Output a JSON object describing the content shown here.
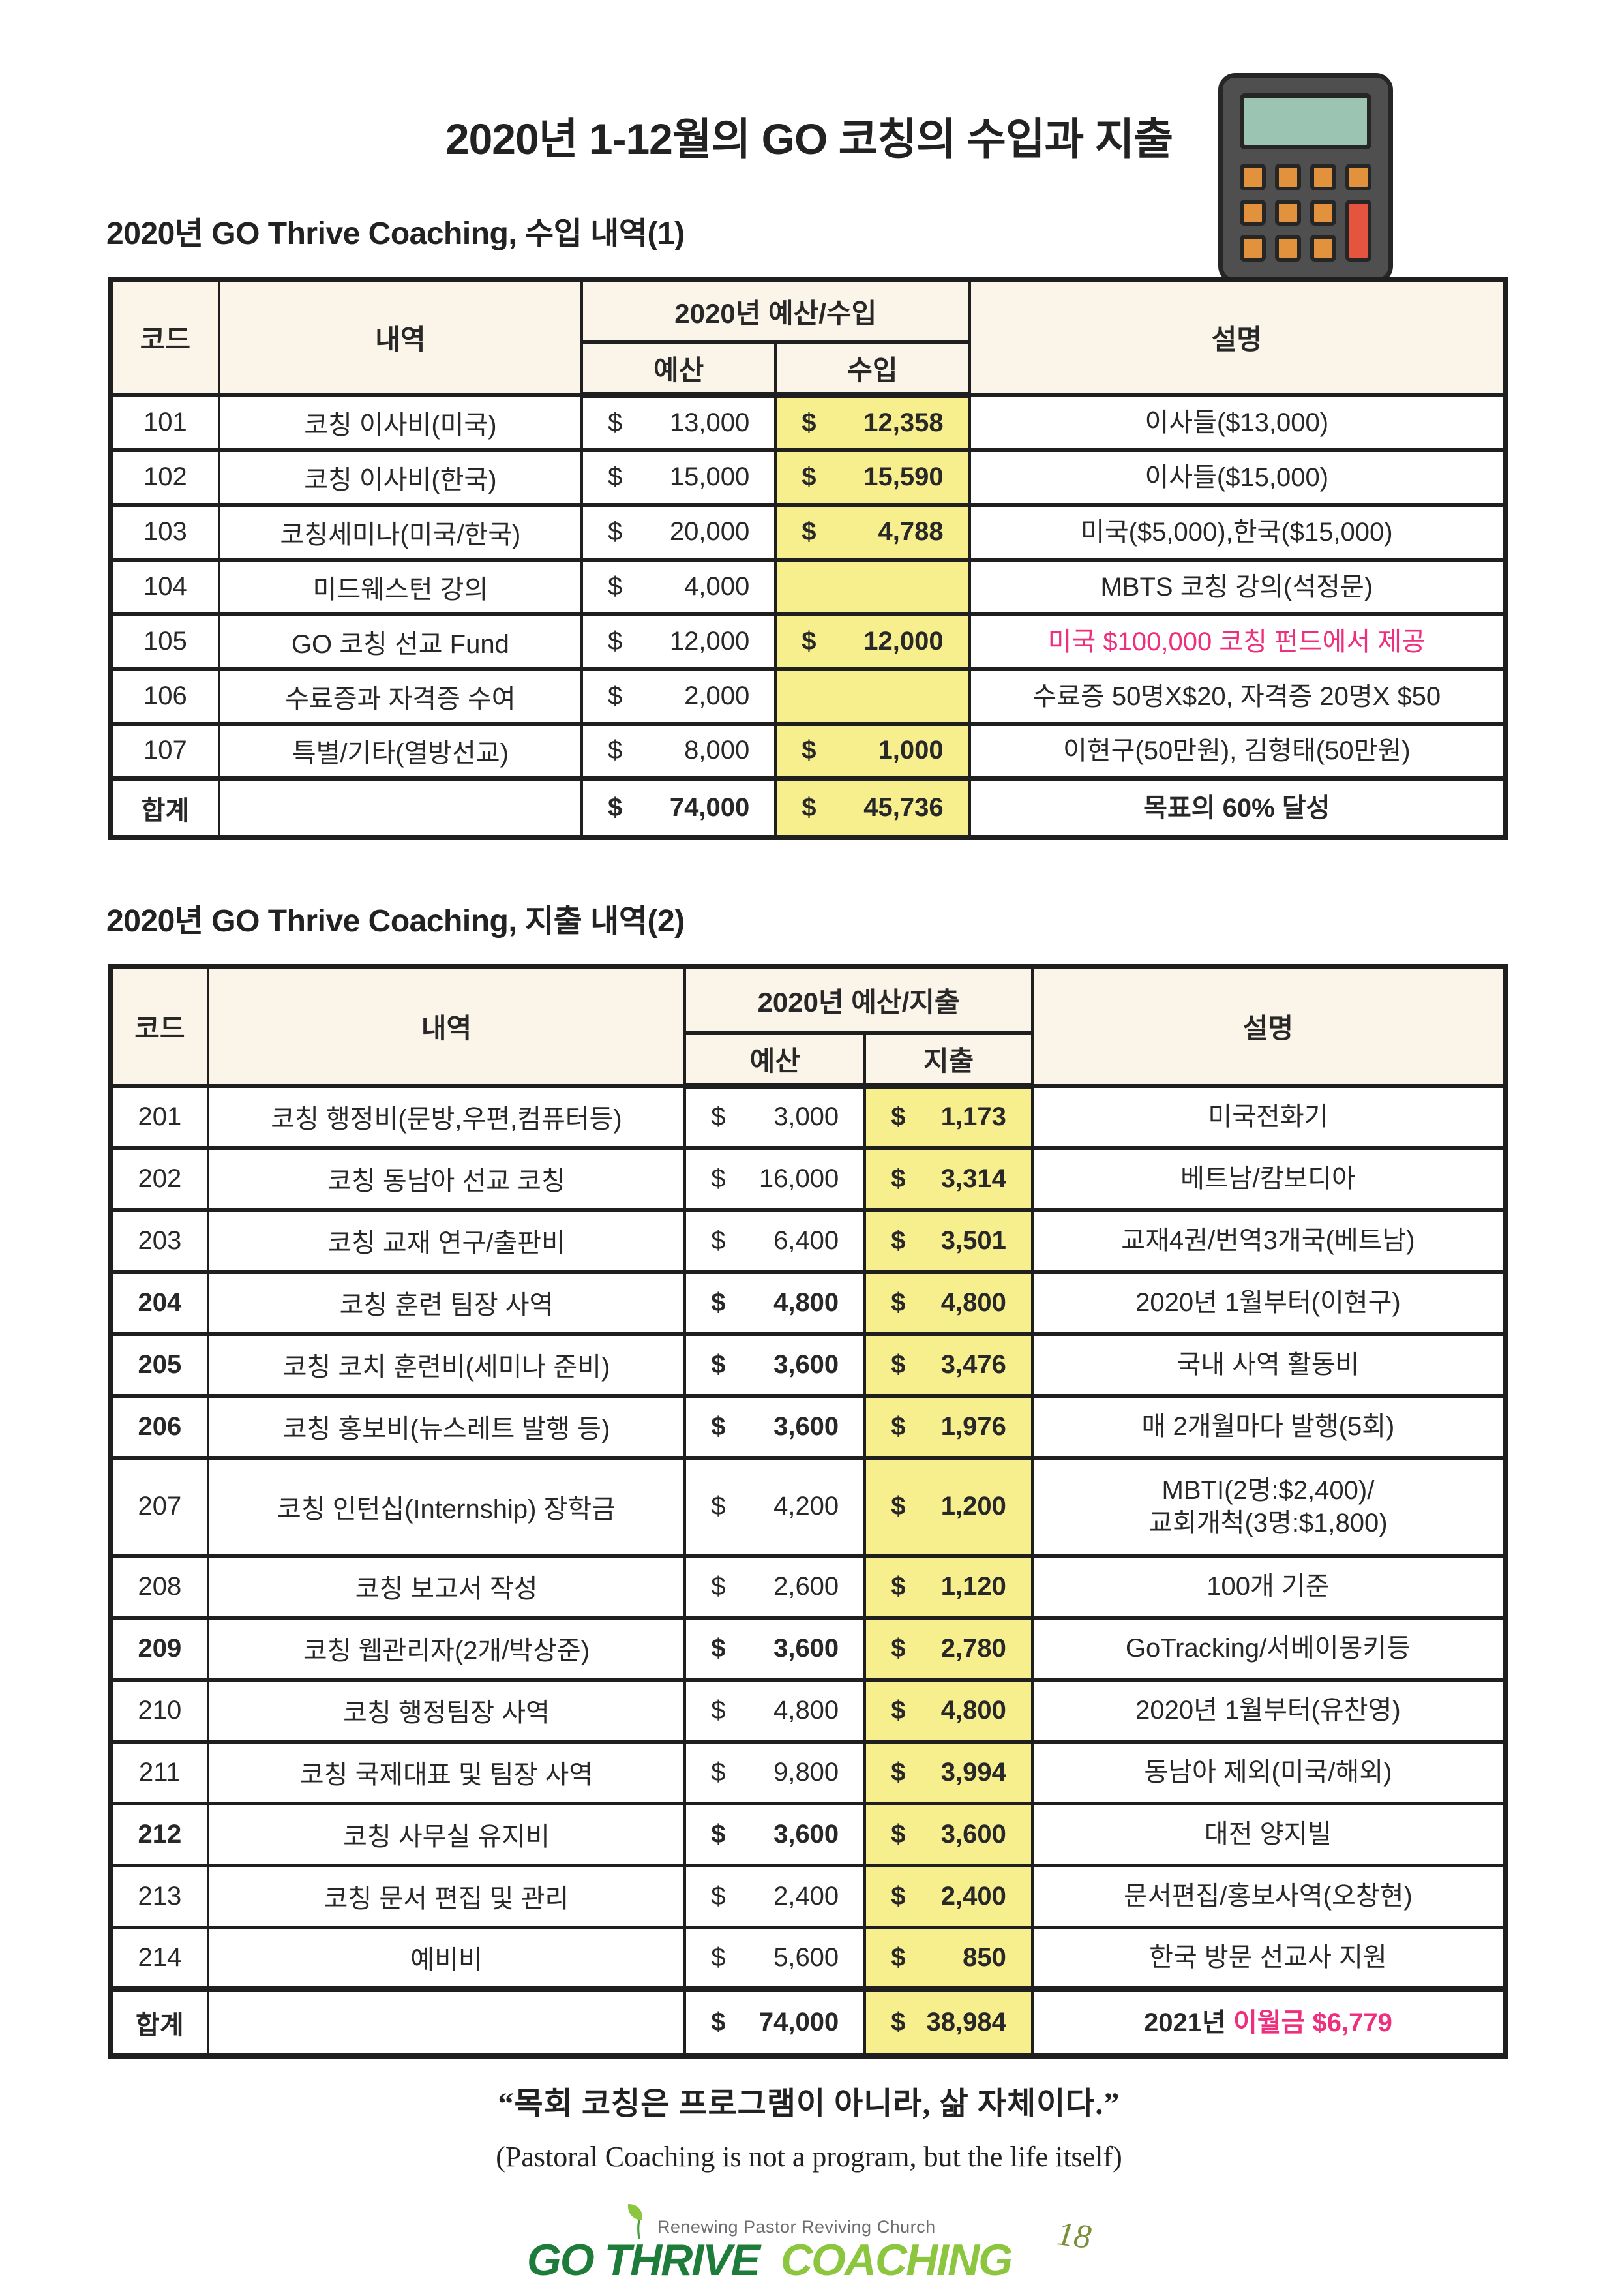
{
  "page": {
    "title": "2020년 1-12월의 GO 코칭의 수입과 지출",
    "page_number": "18",
    "title_icon": "calculator-icon"
  },
  "colors": {
    "header_cream": "#fbf4e9",
    "highlight_yellow": "#f7ef8e",
    "accent_pink": "#ee2f7d",
    "table_border": "#1f1f1f",
    "logo_dark_green": "#1d7c39",
    "logo_light_green": "#8cc63f",
    "calc_body": "#4f4f4f",
    "calc_display": "#9cc4b2",
    "calc_key_orange": "#e2913d",
    "calc_key_red": "#e4543e"
  },
  "income_table": {
    "section_title": "2020년 GO Thrive Coaching, 수입 내역(1)",
    "headers": {
      "code": "코드",
      "item": "내역",
      "group": "2020년 예산/수입",
      "budget": "예산",
      "actual": "수입",
      "description": "설명"
    },
    "rows": [
      {
        "code": "101",
        "item": "코칭 이사비(미국)",
        "budget": "$ 13,000",
        "actual": "$ 12,358",
        "desc": "이사들($13,000)"
      },
      {
        "code": "102",
        "item": "코칭 이사비(한국)",
        "budget": "$ 15,000",
        "actual": "$ 15,590",
        "desc": "이사들($15,000)"
      },
      {
        "code": "103",
        "item": "코칭세미나(미국/한국)",
        "budget": "$ 20,000",
        "actual": "$ 4,788",
        "desc": "미국($5,000),한국($15,000)"
      },
      {
        "code": "104",
        "item": "미드웨스턴 강의",
        "budget": "$ 4,000",
        "actual": "",
        "desc": "MBTS 코칭 강의(석정문)"
      },
      {
        "code": "105",
        "item": "GO 코칭 선교 Fund",
        "budget": "$ 12,000",
        "actual": "$ 12,000",
        "desc": "미국 $100,000 코칭 펀드에서 제공",
        "pink": true
      },
      {
        "code": "106",
        "item": "수료증과 자격증 수여",
        "budget": "$ 2,000",
        "actual": "",
        "desc": "수료증 50명X$20, 자격증 20명X $50"
      },
      {
        "code": "107",
        "item": "특별/기타(열방선교)",
        "budget": "$ 8,000",
        "actual": "$ 1,000",
        "desc": "이현구(50만원), 김형태(50만원)"
      }
    ],
    "total": {
      "code": "합계",
      "item": "",
      "budget": "$ 74,000",
      "actual": "$ 45,736",
      "desc": "목표의 60% 달성"
    }
  },
  "expense_table": {
    "section_title": "2020년 GO Thrive Coaching, 지출 내역(2)",
    "headers": {
      "code": "코드",
      "item": "내역",
      "group": "2020년 예산/지출",
      "budget": "예산",
      "actual": "지출",
      "description": "설명"
    },
    "rows": [
      {
        "code": "201",
        "item": "코칭 행정비(문방,우편,컴퓨터등)",
        "budget": "$ 3,000",
        "actual": "$ 1,173",
        "desc": "미국전화기"
      },
      {
        "code": "202",
        "item": "코칭 동남아 선교 코칭",
        "budget": "$ 16,000",
        "actual": "$ 3,314",
        "desc": "베트남/캄보디아"
      },
      {
        "code": "203",
        "item": "코칭 교재 연구/출판비",
        "budget": "$ 6,400",
        "actual": "$ 3,501",
        "desc": "교재4권/번역3개국(베트남)"
      },
      {
        "code": "204",
        "item": "코칭 훈련 팀장 사역",
        "budget": "$ 4,800",
        "actual": "$ 4,800",
        "desc": "2020년 1월부터(이현구)",
        "bold": true
      },
      {
        "code": "205",
        "item": "코칭 코치 훈련비(세미나 준비)",
        "budget": "$ 3,600",
        "actual": "$ 3,476",
        "desc": "국내 사역 활동비",
        "bold": true
      },
      {
        "code": "206",
        "item": "코칭 홍보비(뉴스레트 발행 등)",
        "budget": "$ 3,600",
        "actual": "$ 1,976",
        "desc": "매 2개월마다 발행(5회)",
        "bold": true
      },
      {
        "code": "207",
        "item": "코칭 인턴십(Internship) 장학금",
        "budget": "$ 4,200",
        "actual": "$ 1,200",
        "desc": "MBTI(2명:$2,400)/\n교회개척(3명:$1,800)",
        "tall": true
      },
      {
        "code": "208",
        "item": "코칭 보고서 작성",
        "budget": "$ 2,600",
        "actual": "$ 1,120",
        "desc": "100개 기준"
      },
      {
        "code": "209",
        "item": "코칭 웹관리자(2개/박상준)",
        "budget": "$ 3,600",
        "actual": "$ 2,780",
        "desc": "GoTracking/서베이몽키등",
        "bold": true
      },
      {
        "code": "210",
        "item": "코칭 행정팀장 사역",
        "budget": "$ 4,800",
        "actual": "$ 4,800",
        "desc": "2020년 1월부터(유찬영)"
      },
      {
        "code": "211",
        "item": "코칭 국제대표 및 팀장 사역",
        "budget": "$ 9,800",
        "actual": "$ 3,994",
        "desc": "동남아 제외(미국/해외)"
      },
      {
        "code": "212",
        "item": "코칭 사무실 유지비",
        "budget": "$ 3,600",
        "actual": "$ 3,600",
        "desc": "대전 양지빌",
        "bold": true
      },
      {
        "code": "213",
        "item": "코칭 문서 편집 및 관리",
        "budget": "$ 2,400",
        "actual": "$ 2,400",
        "desc": "문서편집/홍보사역(오창현)"
      },
      {
        "code": "214",
        "item": "예비비",
        "budget": "$ 5,600",
        "actual": "$ 850",
        "desc": "한국 방문 선교사 지원"
      }
    ],
    "total": {
      "code": "합계",
      "item": "",
      "budget": "$ 74,000",
      "actual": "$ 38,984",
      "desc_black": "2021년 ",
      "desc_pink": "이월금 $6,779"
    }
  },
  "quote": {
    "korean": "“목회 코칭은 프로그램이 아니라, 삶 자체이다.”",
    "english": "(Pastoral Coaching is not a program, but the life itself)"
  },
  "logo": {
    "tagline": "Renewing Pastor Reviving Church",
    "name_primary": "GO THRIVE",
    "name_secondary": "COACHING",
    "leaf_icon": "leaf-icon"
  }
}
